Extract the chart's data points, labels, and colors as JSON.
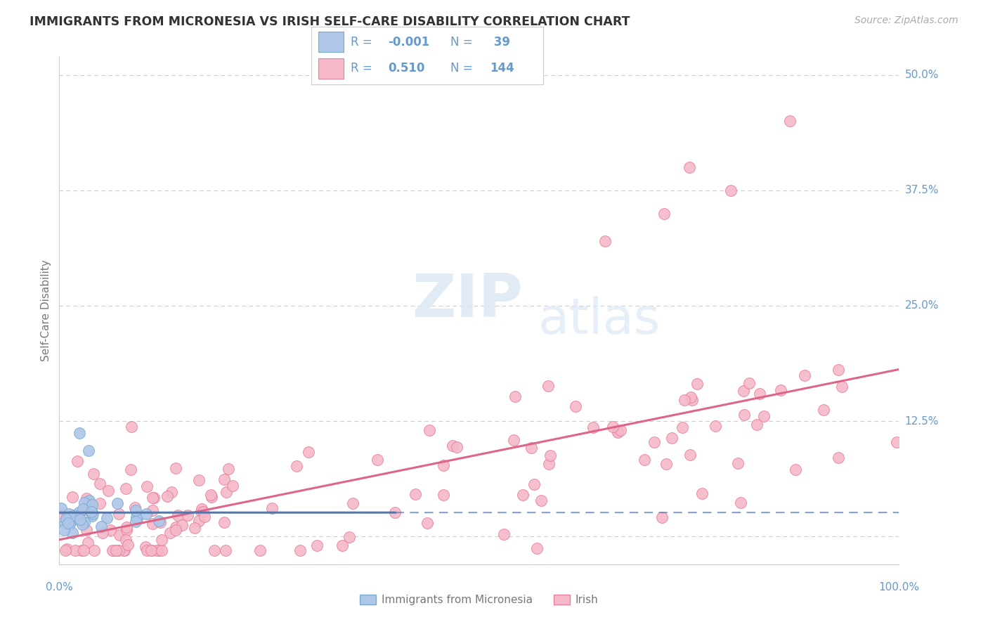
{
  "title": "IMMIGRANTS FROM MICRONESIA VS IRISH SELF-CARE DISABILITY CORRELATION CHART",
  "source": "Source: ZipAtlas.com",
  "ylabel": "Self-Care Disability",
  "xlim": [
    0,
    100
  ],
  "ylim": [
    -3,
    52
  ],
  "yticks": [
    0,
    12.5,
    25.0,
    37.5,
    50.0
  ],
  "ytick_labels": [
    "",
    "12.5%",
    "25.0%",
    "37.5%",
    "50.0%"
  ],
  "color_blue_fill": "#aec6e8",
  "color_blue_edge": "#7aaad0",
  "color_pink_fill": "#f5b8c8",
  "color_pink_edge": "#e8809a",
  "color_blue_line": "#5577aa",
  "color_pink_line": "#dd6688",
  "color_axis_labels": "#6699cc",
  "color_title": "#333333",
  "color_source": "#aaaaaa",
  "color_grid": "#cccccc",
  "background_color": "#ffffff",
  "blue_r": "-0.001",
  "blue_n": "39",
  "pink_r": "0.510",
  "pink_n": "144",
  "seed": 123
}
